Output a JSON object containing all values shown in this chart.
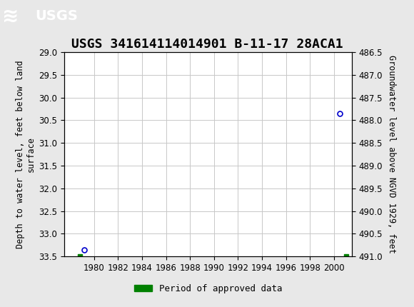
{
  "title": "USGS 341614114014901 B-11-17 28ACA1",
  "ylabel_left": "Depth to water level, feet below land\nsurface",
  "ylabel_right": "Groundwater level above NGVD 1929, feet",
  "xlim": [
    1977.5,
    2001.5
  ],
  "ylim_left": [
    29.0,
    33.5
  ],
  "ylim_right": [
    491.0,
    486.5
  ],
  "xticks": [
    1980,
    1982,
    1984,
    1986,
    1988,
    1990,
    1992,
    1994,
    1996,
    1998,
    2000
  ],
  "yticks_left": [
    29.0,
    29.5,
    30.0,
    30.5,
    31.0,
    31.5,
    32.0,
    32.5,
    33.0,
    33.5
  ],
  "yticks_right": [
    491.0,
    490.5,
    490.0,
    489.5,
    489.0,
    488.5,
    488.0,
    487.5,
    487.0,
    486.5
  ],
  "data_points_x": [
    1979.2,
    2000.5
  ],
  "data_points_y": [
    33.35,
    30.35
  ],
  "data_color": "#0000cc",
  "approved_bar_x1": 1978.8,
  "approved_bar_x2": 2001.0,
  "approved_bar_y": 33.5,
  "approved_color": "#008000",
  "header_color": "#1a6b3a",
  "background_color": "#e8e8e8",
  "plot_bg_color": "#ffffff",
  "grid_color": "#c8c8c8",
  "title_fontsize": 13,
  "axis_label_fontsize": 8.5,
  "tick_fontsize": 8.5,
  "legend_fontsize": 9
}
